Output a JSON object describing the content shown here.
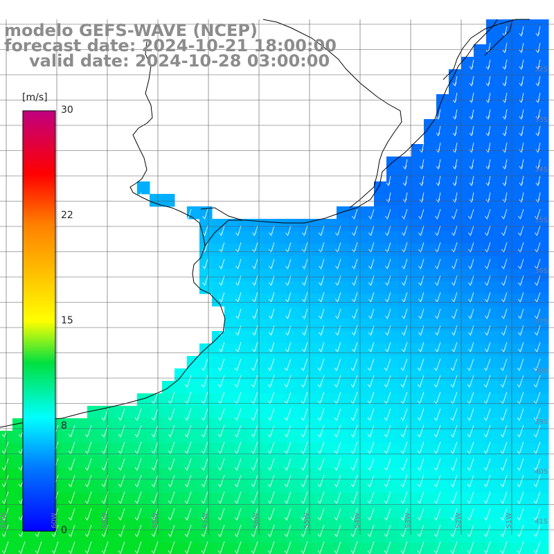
{
  "title": {
    "model": "modelo GEFS-WAVE (NCEP)",
    "forecast": "forecast date: 2024-10-21 18:00:00",
    "valid": "valid date: 2024-10-28 03:00:00"
  },
  "colorbar": {
    "unit": "[m/s]",
    "ticks": [
      "30",
      "22",
      "15",
      "8",
      "0"
    ],
    "colors": [
      "#0000ff",
      "#0090ff",
      "#00ffff",
      "#00ff00",
      "#ffff00",
      "#ff8000",
      "#ff0000",
      "#c00080"
    ]
  },
  "latitude_labels": [
    "32S",
    "33S",
    "34S",
    "35S",
    "36S",
    "37S",
    "38S",
    "39S",
    "40S",
    "41S"
  ],
  "longitude_labels": [
    "61W",
    "60W",
    "59W",
    "58W",
    "57W",
    "56W",
    "55W",
    "54W",
    "53W",
    "52W",
    "51W"
  ],
  "colors": {
    "land": "#ffffff",
    "coast": "#000000",
    "grid": "#555555",
    "arrows": "#ffffff",
    "title": "#8c8c8c"
  }
}
